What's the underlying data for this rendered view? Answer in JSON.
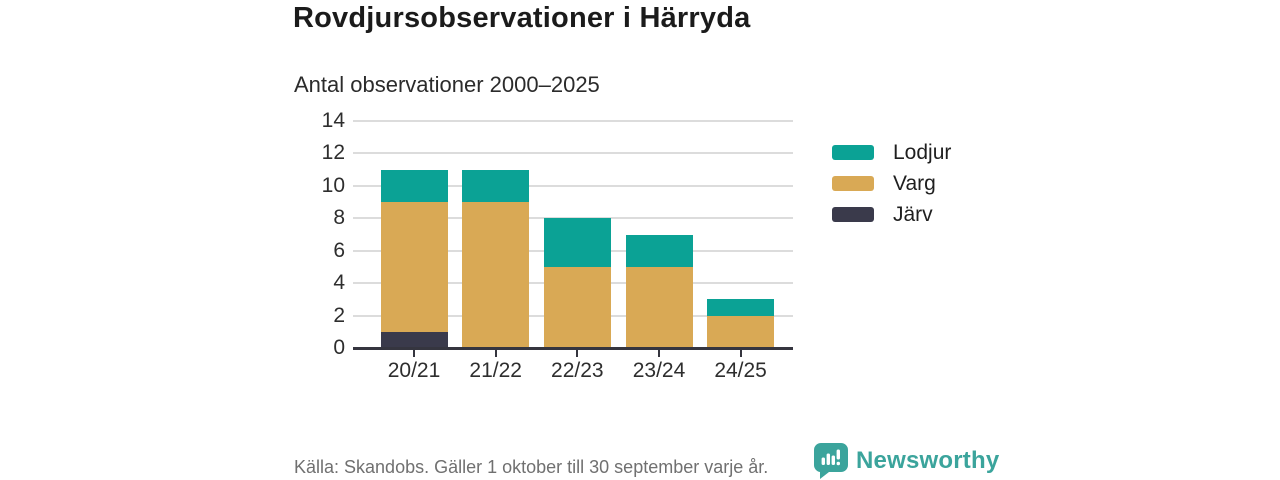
{
  "page": {
    "title": "Rovdjursobservationer i Härryda",
    "subtitle": "Antal observationer 2000–2025",
    "source_note": "Källa: Skandobs. Gäller 1 oktober till 30 september varje år.",
    "brand": "Newsworthy"
  },
  "chart_data": {
    "type": "bar",
    "stacked": true,
    "title": "Rovdjursobservationer i Härryda",
    "subtitle": "Antal observationer 2000–2025",
    "categories": [
      "20/21",
      "21/22",
      "22/23",
      "23/24",
      "24/25"
    ],
    "series": [
      {
        "name": "Lodjur",
        "color": "#0ba295",
        "values": [
          2,
          2,
          3,
          2,
          1
        ]
      },
      {
        "name": "Varg",
        "color": "#d9a955",
        "values": [
          8,
          9,
          5,
          5,
          2
        ]
      },
      {
        "name": "Järv",
        "color": "#3a3a4b",
        "values": [
          1,
          0,
          0,
          0,
          0
        ]
      }
    ],
    "stack_order_bottom_to_top": [
      "Järv",
      "Varg",
      "Lodjur"
    ],
    "totals": [
      11,
      11,
      8,
      7,
      3
    ],
    "xlabel": "",
    "ylabel": "",
    "ylim": [
      0,
      14
    ],
    "yticks": [
      0,
      2,
      4,
      6,
      8,
      10,
      12,
      14
    ],
    "grid": true,
    "legend_position": "right",
    "source": "Källa: Skandobs. Gäller 1 oktober till 30 september varje år."
  },
  "colors": {
    "background": "#ffffff",
    "grid": "#dcdcdc",
    "axis": "#35353f",
    "title_text": "#1b1b1b",
    "tick_text": "#2e2e2e",
    "source_text": "#707070",
    "brand_teal": "#3ba49c"
  }
}
